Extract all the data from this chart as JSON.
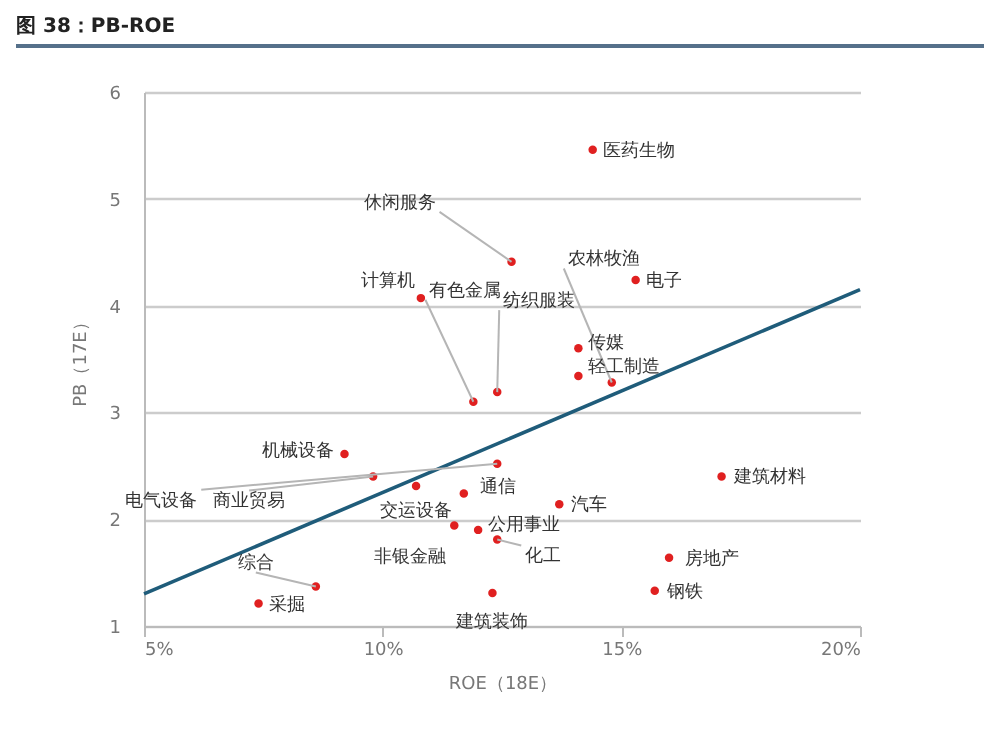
{
  "chart_data": {
    "type": "scatter",
    "title": "图 38：PB-ROE",
    "xlabel": "ROE（18E）",
    "ylabel": "PB（17E）",
    "xlim": [
      5,
      20
    ],
    "xticks": [
      {
        "value": 5,
        "label": "5%"
      },
      {
        "value": 10,
        "label": "10%"
      },
      {
        "value": 15,
        "label": "15%"
      },
      {
        "value": 20,
        "label": "20%"
      }
    ],
    "ylim": [
      1,
      6
    ],
    "yticks": [
      1,
      2,
      3,
      4,
      5,
      6
    ],
    "grid": "y",
    "marker": "circle",
    "series": [
      {
        "color": "#e02020",
        "x": [
          14.4,
          15.3,
          10.8,
          12.7,
          14.8,
          14.1,
          14.1,
          11.9,
          12.4,
          12.4,
          9.2,
          9.8,
          10.7,
          11.7,
          8.6,
          7.4,
          11.5,
          12.0,
          12.4,
          12.3,
          13.7,
          17.1,
          16.0,
          15.7
        ],
        "values": [
          5.46,
          4.24,
          4.07,
          4.41,
          3.28,
          3.6,
          3.34,
          3.1,
          3.19,
          2.52,
          2.61,
          2.4,
          2.31,
          2.24,
          1.37,
          1.21,
          1.94,
          1.9,
          1.81,
          1.31,
          2.14,
          2.4,
          1.64,
          1.33
        ]
      },
      {
        "type": "line",
        "color": "#1f5c7a",
        "marker": "none",
        "x": [
          5,
          20
        ],
        "values": [
          1.3,
          4.15
        ]
      }
    ],
    "annotations": [
      {
        "text": "医药生物",
        "x": 14.4,
        "y": 5.46
      },
      {
        "text": "电子",
        "x": 15.3,
        "y": 4.24
      },
      {
        "text": "计算机",
        "x": 10.8,
        "y": 4.07
      },
      {
        "text": "休闲服务",
        "x": 12.7,
        "y": 4.41
      },
      {
        "text": "农林牧渔",
        "x": 14.8,
        "y": 3.28
      },
      {
        "text": "传媒",
        "x": 14.1,
        "y": 3.6
      },
      {
        "text": "轻工制造",
        "x": 14.1,
        "y": 3.34
      },
      {
        "text": "有色金属",
        "x": 11.9,
        "y": 3.1
      },
      {
        "text": "纺织服装",
        "x": 12.4,
        "y": 3.19
      },
      {
        "text": "电气设备",
        "x": 12.4,
        "y": 2.52
      },
      {
        "text": "机械设备",
        "x": 9.2,
        "y": 2.61
      },
      {
        "text": "商业贸易",
        "x": 9.8,
        "y": 2.4
      },
      {
        "text": "交运设备",
        "x": 10.7,
        "y": 2.31
      },
      {
        "text": "通信",
        "x": 11.7,
        "y": 2.24
      },
      {
        "text": "综合",
        "x": 8.6,
        "y": 1.37
      },
      {
        "text": "采掘",
        "x": 7.4,
        "y": 1.21
      },
      {
        "text": "非银金融",
        "x": 11.5,
        "y": 1.94
      },
      {
        "text": "公用事业",
        "x": 12.0,
        "y": 1.9
      },
      {
        "text": "化工",
        "x": 12.4,
        "y": 1.81
      },
      {
        "text": "建筑装饰",
        "x": 12.3,
        "y": 1.31
      },
      {
        "text": "汽车",
        "x": 13.7,
        "y": 2.14
      },
      {
        "text": "建筑材料",
        "x": 17.1,
        "y": 2.4
      },
      {
        "text": "房地产",
        "x": 16.0,
        "y": 1.64
      },
      {
        "text": "钢铁",
        "x": 15.7,
        "y": 1.33
      }
    ]
  }
}
